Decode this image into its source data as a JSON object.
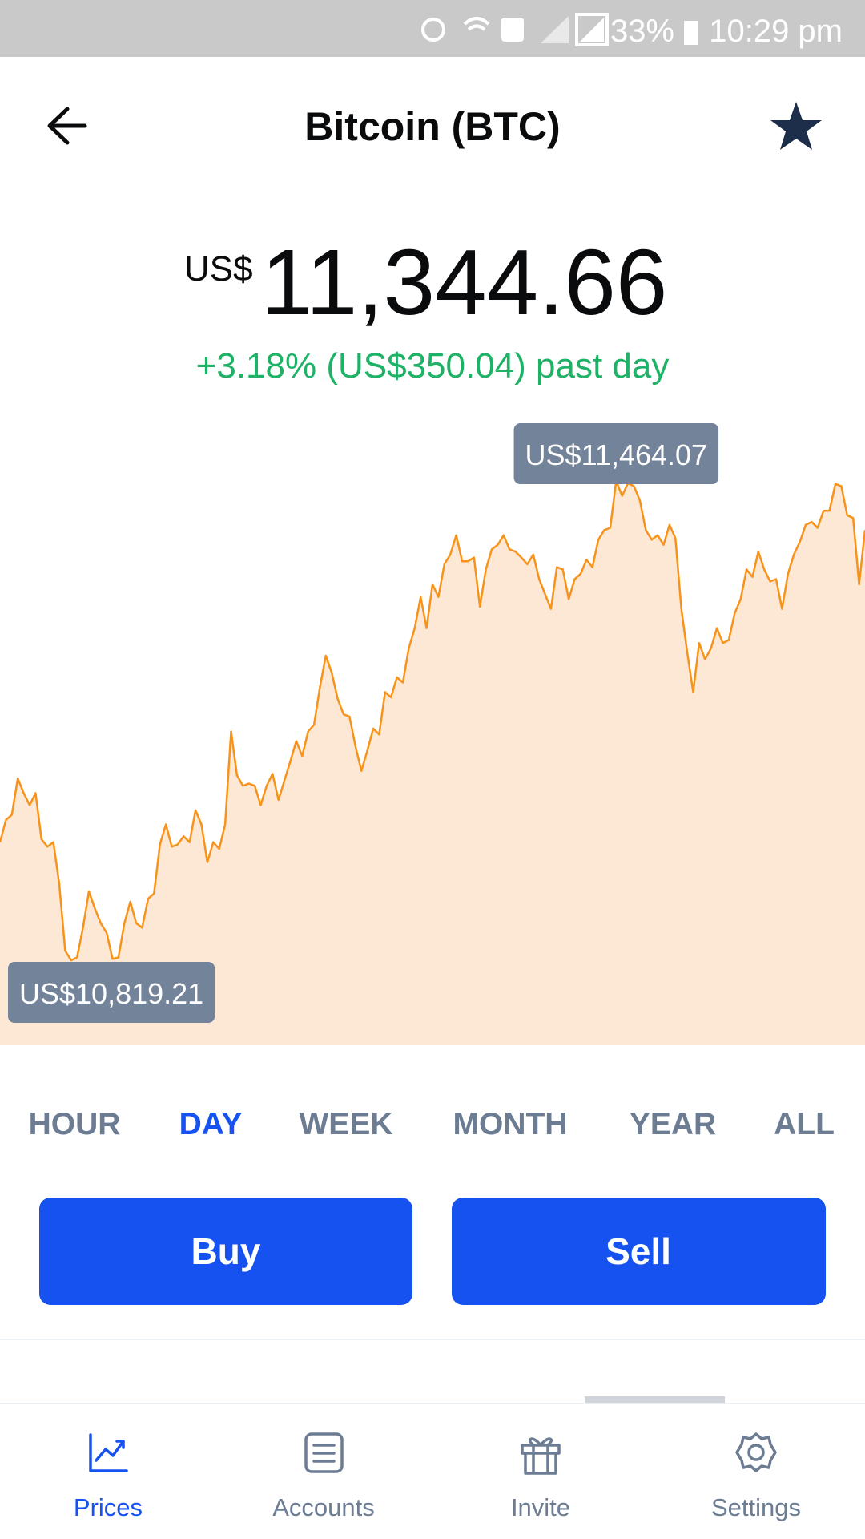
{
  "status_bar": {
    "battery": "33%",
    "time": "10:29 pm"
  },
  "header": {
    "title": "Bitcoin (BTC)"
  },
  "price": {
    "currency": "US$",
    "amount": "11,344.66",
    "change": "+3.18% (US$350.04) past day"
  },
  "chart_data": {
    "type": "line",
    "color": "#f7931a",
    "fill": "#fce8d4",
    "high_label": "US$11,464.07",
    "low_label": "US$10,819.21",
    "values": [
      10978,
      11008,
      11015,
      11064,
      11044,
      11028,
      11044,
      10982,
      10972,
      10978,
      10922,
      10832,
      10819.21,
      10823,
      10863,
      10912,
      10889,
      10869,
      10856,
      10821,
      10823,
      10869,
      10898,
      10869,
      10863,
      10902,
      10909,
      10975,
      11002,
      10972,
      10975,
      10986,
      10978,
      11021,
      11002,
      10951,
      10978,
      10969,
      11002,
      11127,
      11068,
      11054,
      11057,
      11054,
      11028,
      11054,
      11070,
      11035,
      11061,
      11087,
      11114,
      11094,
      11127,
      11136,
      11187,
      11229,
      11206,
      11171,
      11150,
      11147,
      11107,
      11074,
      11101,
      11131,
      11123,
      11180,
      11173,
      11200,
      11193,
      11239,
      11266,
      11308,
      11266,
      11325,
      11308,
      11352,
      11365,
      11391,
      11356,
      11356,
      11361,
      11295,
      11345,
      11372,
      11378,
      11391,
      11372,
      11369,
      11361,
      11352,
      11365,
      11332,
      11312,
      11292,
      11348,
      11345,
      11305,
      11332,
      11339,
      11358,
      11348,
      11385,
      11398,
      11401,
      11464.07,
      11444,
      11461,
      11457,
      11438,
      11398,
      11385,
      11391,
      11378,
      11405,
      11387,
      11292,
      11233,
      11180,
      11246,
      11224,
      11239,
      11266,
      11246,
      11250,
      11286,
      11305,
      11345,
      11335,
      11369,
      11345,
      11329,
      11332,
      11292,
      11339,
      11365,
      11382,
      11405,
      11409,
      11401,
      11424,
      11424,
      11460,
      11457,
      11418,
      11414,
      11325,
      11398
    ]
  },
  "timeframes": [
    {
      "label": "HOUR",
      "selected": false
    },
    {
      "label": "DAY",
      "selected": true
    },
    {
      "label": "WEEK",
      "selected": false
    },
    {
      "label": "MONTH",
      "selected": false
    },
    {
      "label": "YEAR",
      "selected": false
    },
    {
      "label": "ALL",
      "selected": false
    }
  ],
  "actions": {
    "buy": "Buy",
    "sell": "Sell"
  },
  "nav": [
    {
      "label": "Prices",
      "active": true
    },
    {
      "label": "Accounts",
      "active": false
    },
    {
      "label": "Invite",
      "active": false
    },
    {
      "label": "Settings",
      "active": false
    }
  ]
}
